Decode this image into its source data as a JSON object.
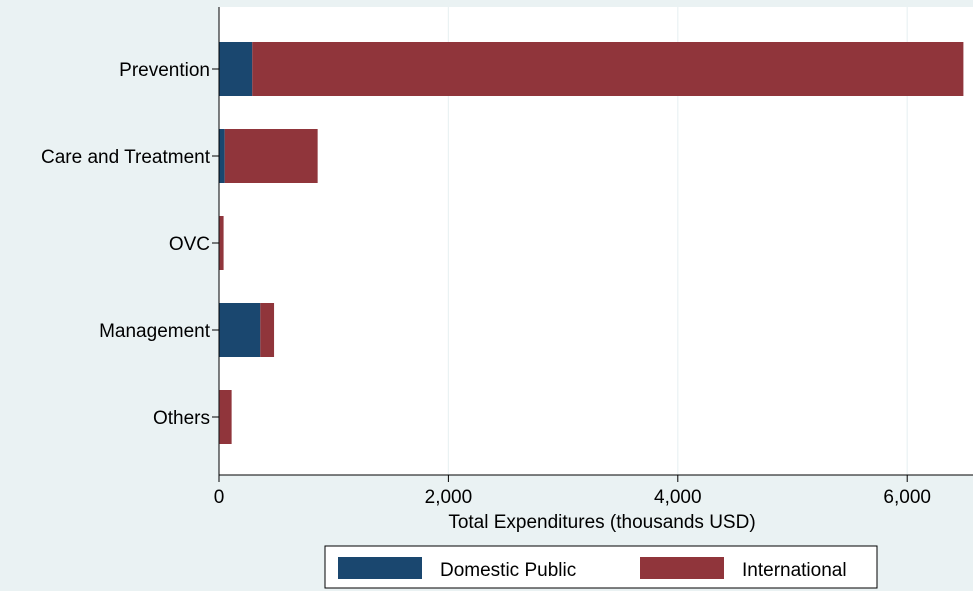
{
  "chart_data": {
    "type": "bar",
    "orientation": "horizontal",
    "stacked": true,
    "title": "",
    "xlabel": "Total Expenditures (thousands USD)",
    "ylabel": "",
    "xlim": [
      0,
      6500
    ],
    "xticks": [
      0,
      2000,
      4000,
      6000
    ],
    "xtick_labels": [
      "0",
      "2,000",
      "4,000",
      "6,000"
    ],
    "grid": true,
    "legend_position": "bottom",
    "categories": [
      "Prevention",
      "Care and Treatment",
      "OVC",
      "Management",
      "Others"
    ],
    "series": [
      {
        "name": "Domestic Public",
        "color": "#1a476f",
        "values": [
          290,
          50,
          5,
          360,
          5
        ]
      },
      {
        "name": "International",
        "color": "#90353b",
        "values": [
          6200,
          810,
          35,
          120,
          105
        ]
      }
    ]
  }
}
